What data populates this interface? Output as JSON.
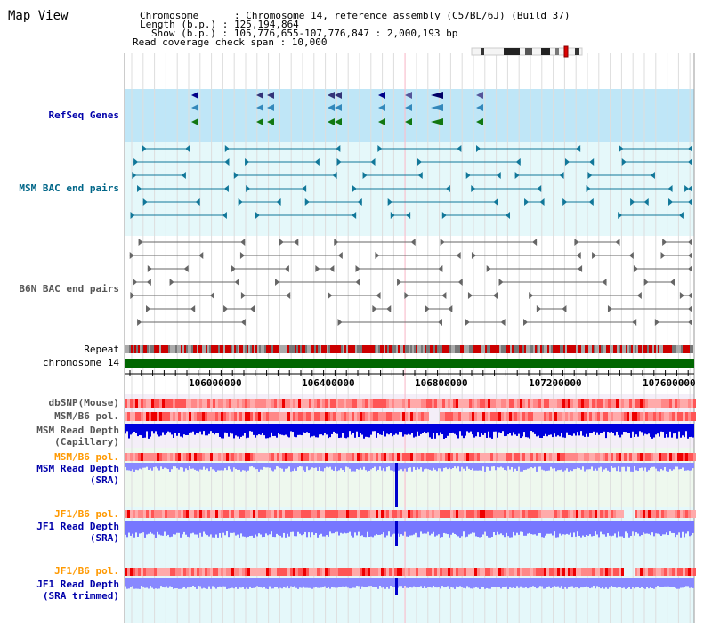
{
  "title": "Map View",
  "info": {
    "line1": "Chromosome      : Chromosome 14, reference assembly (C57BL/6J) (Build 37)",
    "line2": "Length (b.p.) : 125,194,864",
    "line3": "Show (b.p.) : 105,776,655-107,776,847 : 2,000,193 bp",
    "line4": "Read coverage check span : 10,000"
  },
  "tracks": {
    "refseq": "RefSeq Genes",
    "msm_bac": "MSM BAC end pairs",
    "b6n_bac": "B6N BAC end pairs",
    "repeat": "Repeat",
    "chromosome": "chromosome 14",
    "dbsnp": "dbSNP(Mouse)",
    "msm_b6_pol1": "MSM/B6 pol.",
    "msm_read_depth_cap_1": "MSM Read Depth",
    "msm_read_depth_cap_2": "(Capillary)",
    "msm_b6_pol2": "MSM/B6 pol.",
    "msm_read_depth_sra_1": "MSM Read Depth",
    "msm_read_depth_sra_2": "(SRA)",
    "jf1_b6_pol1": "JF1/B6 pol.",
    "jf1_read_depth_sra_1": "JF1 Read Depth",
    "jf1_read_depth_sra_2": "(SRA)",
    "jf1_b6_pol2": "JF1/B6 pol.",
    "jf1_read_depth_trim_1": "JF1 Read Depth",
    "jf1_read_depth_trim_2": "(SRA trimmed)"
  },
  "axis_ticks": [
    "106000000",
    "106400000",
    "106800000",
    "107200000",
    "107600000"
  ],
  "colors": {
    "refseq_label": "#0000aa",
    "msm_bac_label": "#006688",
    "b6n_bac_label": "#555555",
    "pol_label": "#ff9900",
    "depth_label": "#0000aa",
    "chromosome_bar": "#006600",
    "refseq_bg": "#bfe6f7",
    "msm_bac_bg": "#e5f8fa",
    "depth_blue": "#0000dd",
    "depth_light": "#8888ff"
  }
}
